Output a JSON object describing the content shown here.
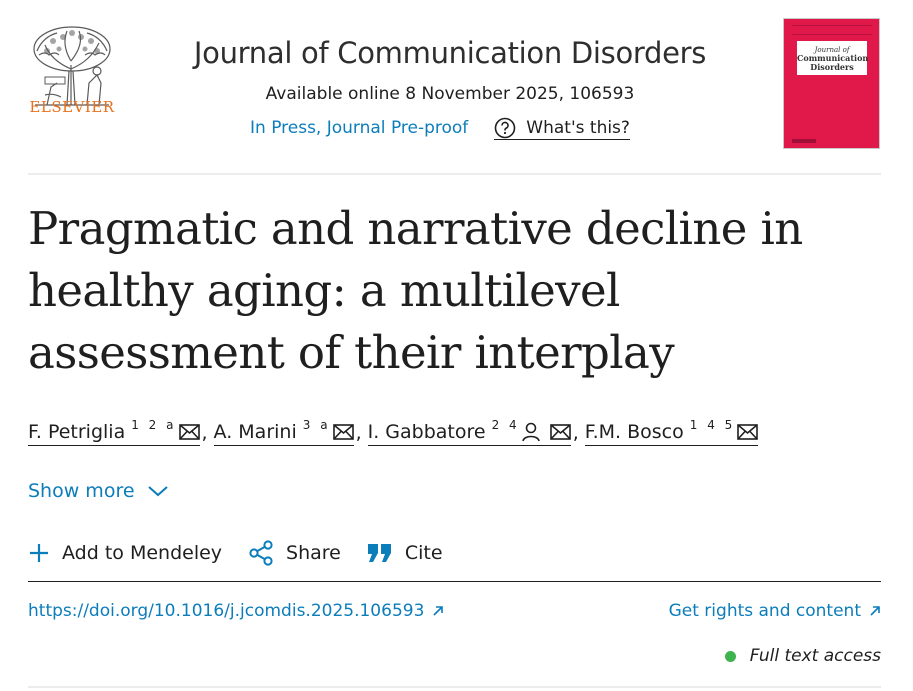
{
  "publisher": {
    "name": "ELSEVIER",
    "logo_icon": "elsevier-tree-icon",
    "brand_color": "#e9711c"
  },
  "journal": {
    "title": "Journal of Communication Disorders",
    "availability": "Available online 8 November 2025, 106593",
    "status": "In Press, Journal Pre-proof",
    "whats_this": "What's this?",
    "cover_title_small": "Journal of",
    "cover_title": "Communication Disorders",
    "cover_color": "#e0194a"
  },
  "article": {
    "title": "Pragmatic and narrative decline in healthy aging: a multilevel assessment of their interplay"
  },
  "authors": [
    {
      "name": "F. Petriglia",
      "affil": "1 2 a",
      "icons": [
        "mail-icon"
      ]
    },
    {
      "name": "A. Marini",
      "affil": "3 a",
      "icons": [
        "mail-icon"
      ]
    },
    {
      "name": "I. Gabbatore",
      "affil": "2 4",
      "icons": [
        "person-icon",
        "mail-icon"
      ]
    },
    {
      "name": "F.M. Bosco",
      "affil": "1 4 5",
      "icons": [
        "mail-icon"
      ]
    }
  ],
  "show_more": "Show more",
  "actions": {
    "mendeley": "Add to Mendeley",
    "share": "Share",
    "cite": "Cite"
  },
  "links": {
    "doi": "https://doi.org/10.1016/j.jcomdis.2025.106593",
    "rights": "Get rights and content",
    "access": "Full text access",
    "link_color": "#0c7dbb",
    "access_color": "#3fb34f"
  }
}
